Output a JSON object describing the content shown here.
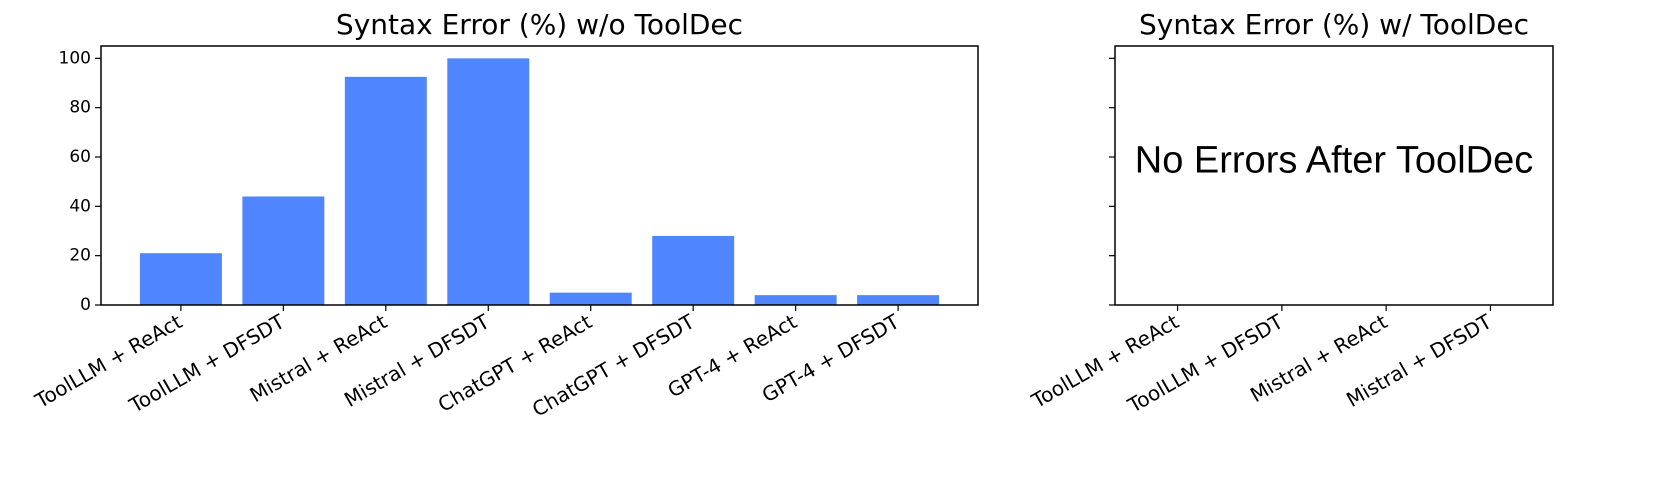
{
  "chart_data": [
    {
      "type": "bar",
      "title": "Syntax Error (%) w/o ToolDec",
      "categories": [
        "ToolLLM + ReAct",
        "ToolLLM + DFSDT",
        "Mistral + ReAct",
        "Mistral + DFSDT",
        "ChatGPT + ReAct",
        "ChatGPT + DFSDT",
        "GPT-4 + ReAct",
        "GPT-4 + DFSDT"
      ],
      "values": [
        21,
        44,
        92.5,
        100,
        5,
        28,
        4,
        4
      ],
      "color": "#4f86ff",
      "ylim": [
        0,
        105
      ],
      "yticks": [
        0,
        20,
        40,
        60,
        80,
        100
      ],
      "grid": false
    },
    {
      "type": "bar",
      "title": "Syntax Error (%) w/ ToolDec",
      "categories": [
        "ToolLLM + ReAct",
        "ToolLLM + DFSDT",
        "Mistral + ReAct",
        "Mistral + DFSDT"
      ],
      "values": [
        0,
        0,
        0,
        0
      ],
      "color": "#4f86ff",
      "ylim": [
        0,
        105
      ],
      "yticks": [
        0,
        20,
        40,
        60,
        80,
        100
      ],
      "grid": false,
      "annotation": "No Errors After ToolDec"
    }
  ]
}
